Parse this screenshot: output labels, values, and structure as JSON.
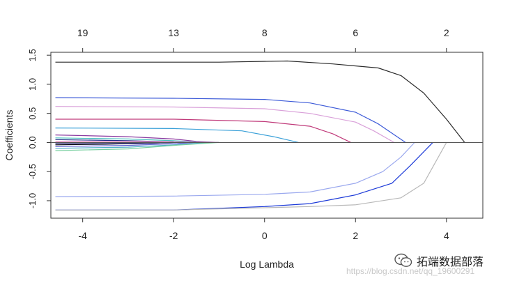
{
  "chart_data": {
    "type": "line",
    "title": "",
    "xlabel": "Log Lambda",
    "ylabel": "Coefficients",
    "xlim": [
      -4.7,
      4.8
    ],
    "ylim": [
      -1.3,
      1.55
    ],
    "x_ticks": [
      "-4",
      "-2",
      "0",
      "2",
      "4"
    ],
    "x_tick_values": [
      -4,
      -2,
      0,
      2,
      4
    ],
    "y_ticks": [
      "-1.0",
      "-0.5",
      "0.0",
      "0.5",
      "1.0",
      "1.5"
    ],
    "y_tick_values": [
      -1.0,
      -0.5,
      0.0,
      0.5,
      1.0,
      1.5
    ],
    "top_axis_ticks": [
      "19",
      "13",
      "8",
      "6",
      "2"
    ],
    "top_axis_tick_values": [
      -4,
      -2,
      0,
      2,
      4
    ],
    "grid": false,
    "series": [
      {
        "color": "#2b2b2b",
        "x": [
          -4.6,
          -1,
          0.5,
          1.5,
          2.5,
          3.0,
          3.5,
          4.0,
          4.4
        ],
        "y": [
          1.38,
          1.38,
          1.4,
          1.35,
          1.28,
          1.15,
          0.85,
          0.4,
          0.0
        ]
      },
      {
        "color": "#3c5ad8",
        "x": [
          -4.6,
          -2,
          0,
          1,
          2,
          2.5,
          3.1
        ],
        "y": [
          0.77,
          0.76,
          0.74,
          0.68,
          0.52,
          0.32,
          0.0
        ]
      },
      {
        "color": "#d9a0d9",
        "x": [
          -4.6,
          -2,
          0,
          1,
          2,
          2.4,
          2.85
        ],
        "y": [
          0.62,
          0.61,
          0.58,
          0.5,
          0.35,
          0.2,
          0.0
        ]
      },
      {
        "color": "#c03a7a",
        "x": [
          -4.6,
          -2,
          0,
          1,
          1.5,
          1.9
        ],
        "y": [
          0.4,
          0.4,
          0.36,
          0.28,
          0.15,
          0.0
        ]
      },
      {
        "color": "#3aa0d8",
        "x": [
          -4.6,
          -2,
          -0.5,
          0.2,
          0.75
        ],
        "y": [
          0.25,
          0.24,
          0.2,
          0.1,
          0.0
        ]
      },
      {
        "color": "#8a3aa0",
        "x": [
          -4.6,
          -3,
          -2,
          -1.5,
          -1
        ],
        "y": [
          0.13,
          0.1,
          0.06,
          0.02,
          0.0
        ]
      },
      {
        "color": "#4ac0c0",
        "x": [
          -4.6,
          -3,
          -2,
          -1.5,
          -1
        ],
        "y": [
          0.08,
          0.06,
          0.03,
          0.01,
          0.0
        ]
      },
      {
        "color": "#22308a",
        "x": [
          -4.6,
          -3,
          -2,
          -1.6
        ],
        "y": [
          0.05,
          0.03,
          0.01,
          0.0
        ]
      },
      {
        "color": "#e070b0",
        "x": [
          -4.6,
          -3,
          -2,
          -1.5,
          -1
        ],
        "y": [
          0.02,
          0.02,
          0.01,
          0.005,
          0.0
        ]
      },
      {
        "color": "#111111",
        "x": [
          -4.6,
          -3.5,
          -2.5,
          -2
        ],
        "y": [
          -0.04,
          -0.03,
          -0.01,
          0.0
        ]
      },
      {
        "color": "#101060",
        "x": [
          -4.6,
          -3.5,
          -2.5,
          -2
        ],
        "y": [
          -0.02,
          -0.02,
          -0.01,
          0.0
        ]
      },
      {
        "color": "#6060d0",
        "x": [
          -4.6,
          -3,
          -2,
          -1.5
        ],
        "y": [
          -0.07,
          -0.05,
          -0.02,
          0.0
        ]
      },
      {
        "color": "#50b0c8",
        "x": [
          -4.6,
          -3,
          -2,
          -1.2
        ],
        "y": [
          -0.1,
          -0.08,
          -0.04,
          0.0
        ]
      },
      {
        "color": "#7ad0a0",
        "x": [
          -4.6,
          -3,
          -2,
          -1
        ],
        "y": [
          -0.14,
          -0.11,
          -0.05,
          0.0
        ]
      },
      {
        "color": "#9aa8ee",
        "x": [
          -4.6,
          -2,
          0,
          1,
          2,
          2.6,
          3.0,
          3.3
        ],
        "y": [
          -0.93,
          -0.92,
          -0.89,
          -0.85,
          -0.7,
          -0.5,
          -0.25,
          0.0
        ]
      },
      {
        "color": "#1c3ad8",
        "x": [
          -4.6,
          -2,
          0,
          1,
          2,
          2.8,
          3.2,
          3.7
        ],
        "y": [
          -1.16,
          -1.16,
          -1.1,
          -1.05,
          -0.9,
          -0.7,
          -0.4,
          0.0
        ]
      },
      {
        "color": "#b8b8b8",
        "x": [
          -4.6,
          -2,
          0,
          1,
          2,
          3,
          3.5,
          4.0
        ],
        "y": [
          -1.16,
          -1.16,
          -1.12,
          -1.1,
          -1.07,
          -0.95,
          -0.7,
          0.0
        ]
      }
    ]
  },
  "watermark": {
    "brand": "拓端数据部落",
    "url": "https://blog.csdn.net/qq_19600291"
  }
}
